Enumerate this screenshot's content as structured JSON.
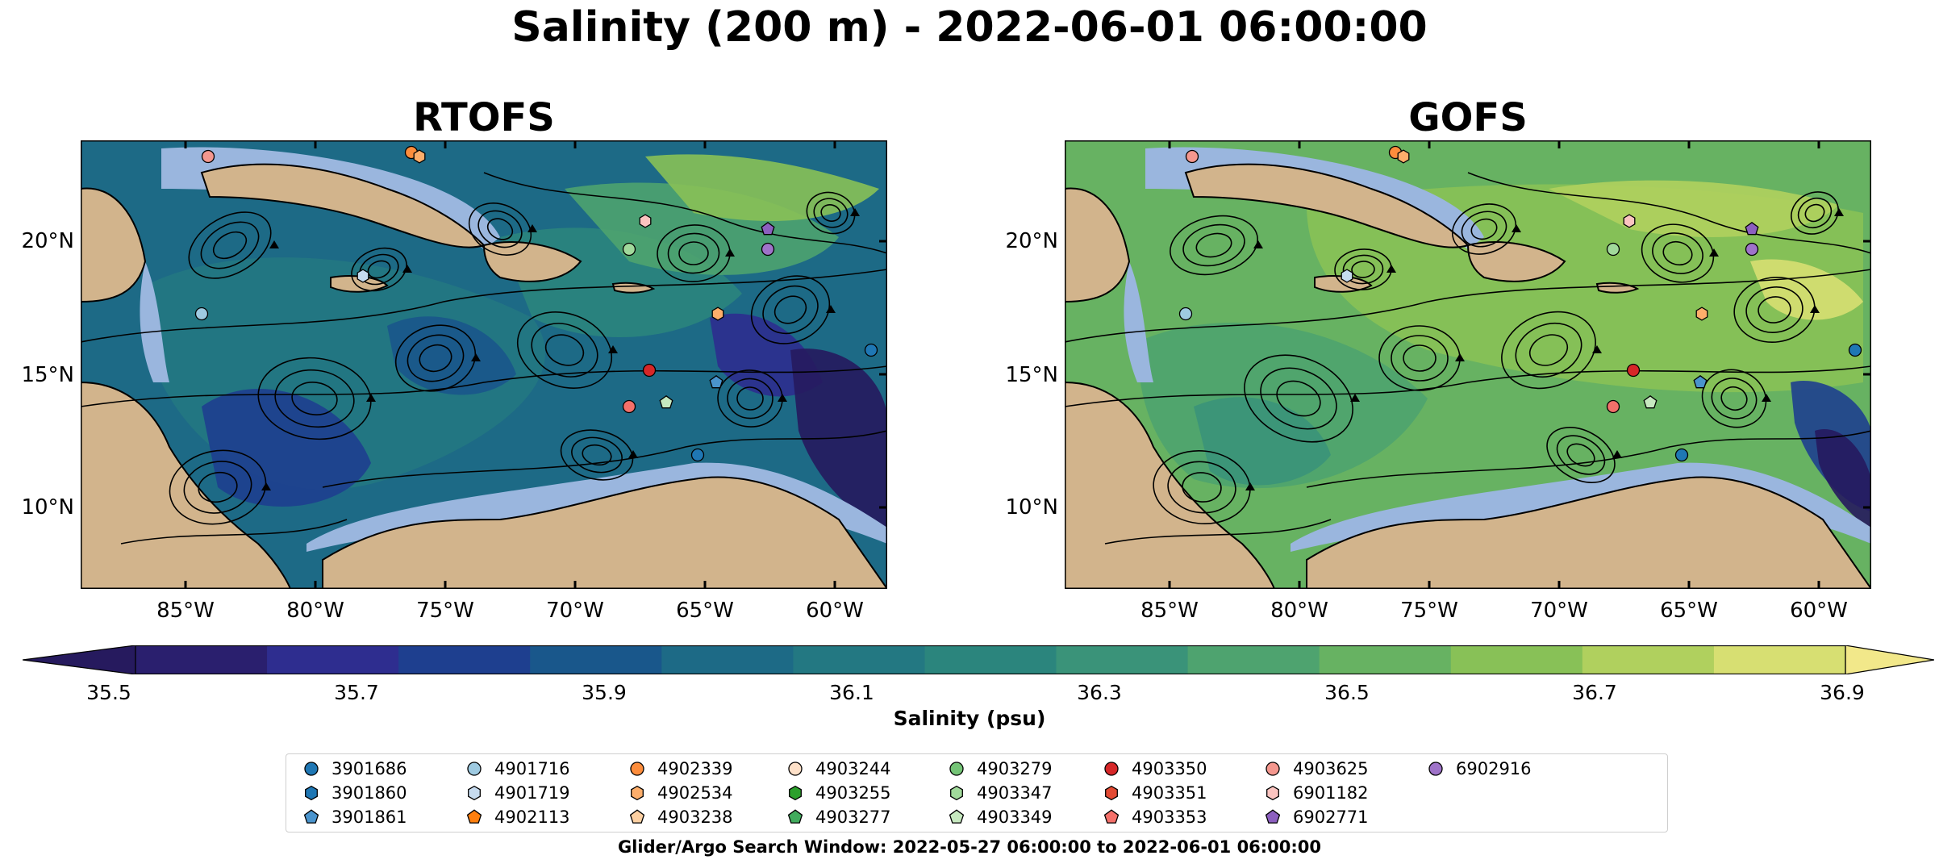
{
  "title": "Salinity (200 m) - 2022-06-01 06:00:00",
  "panels": [
    {
      "title": "RTOFS"
    },
    {
      "title": "GOFS"
    }
  ],
  "lat_labels": [
    "20°N",
    "15°N",
    "10°N"
  ],
  "lon_labels": [
    "85°W",
    "80°W",
    "75°W",
    "70°W",
    "65°W",
    "60°W"
  ],
  "colorbar": {
    "label": "Salinity (psu)",
    "ticks": [
      "35.5",
      "35.7",
      "35.9",
      "36.1",
      "36.3",
      "36.5",
      "36.7",
      "36.9"
    ],
    "colors": [
      "#2a1f6e",
      "#2e2d8f",
      "#1e3f8f",
      "#19578b",
      "#1d6a86",
      "#237882",
      "#2b857d",
      "#3a9379",
      "#4ea36f",
      "#67b262",
      "#88c157",
      "#b0d05e",
      "#d7df72"
    ],
    "under_color": "#261a5e",
    "over_color": "#f2e88a"
  },
  "legend": {
    "items": [
      {
        "id": "3901686",
        "marker": "circle",
        "color": "#1f77b4"
      },
      {
        "id": "3901860",
        "marker": "hexagon",
        "color": "#1f77b4"
      },
      {
        "id": "3901861",
        "marker": "pentagon",
        "color": "#4a94cd"
      },
      {
        "id": "4901716",
        "marker": "circle",
        "color": "#9ecae1"
      },
      {
        "id": "4901719",
        "marker": "hexagon",
        "color": "#c6dbef"
      },
      {
        "id": "4902113",
        "marker": "pentagon",
        "color": "#ff7f0e"
      },
      {
        "id": "4902339",
        "marker": "circle",
        "color": "#fd8d3c"
      },
      {
        "id": "4902534",
        "marker": "hexagon",
        "color": "#fdae6b"
      },
      {
        "id": "4903238",
        "marker": "pentagon",
        "color": "#fdd0a2"
      },
      {
        "id": "4903244",
        "marker": "circle",
        "color": "#fde0c8"
      },
      {
        "id": "4903255",
        "marker": "hexagon",
        "color": "#2ca02c"
      },
      {
        "id": "4903277",
        "marker": "pentagon",
        "color": "#41ab5d"
      },
      {
        "id": "4903279",
        "marker": "circle",
        "color": "#74c476"
      },
      {
        "id": "4903347",
        "marker": "hexagon",
        "color": "#a1d99b"
      },
      {
        "id": "4903349",
        "marker": "pentagon",
        "color": "#c7e9c0"
      },
      {
        "id": "4903350",
        "marker": "circle",
        "color": "#d62728"
      },
      {
        "id": "4903351",
        "marker": "hexagon",
        "color": "#e34a33"
      },
      {
        "id": "4903353",
        "marker": "pentagon",
        "color": "#f4706a"
      },
      {
        "id": "4903625",
        "marker": "circle",
        "color": "#f4978e"
      },
      {
        "id": "6901182",
        "marker": "hexagon",
        "color": "#fbc4c0"
      },
      {
        "id": "6902771",
        "marker": "pentagon",
        "color": "#8c5fbf"
      },
      {
        "id": "6902916",
        "marker": "circle",
        "color": "#9f73c9"
      }
    ]
  },
  "search_window": "Glider/Argo Search Window: 2022-05-27 06:00:00 to 2022-06-01 06:00:00",
  "colors": {
    "land": "#d2b48c",
    "shelf": "#9ab6de",
    "ocean_rtofs": "#1d6a86",
    "ocean_gofs": "#67b262"
  }
}
